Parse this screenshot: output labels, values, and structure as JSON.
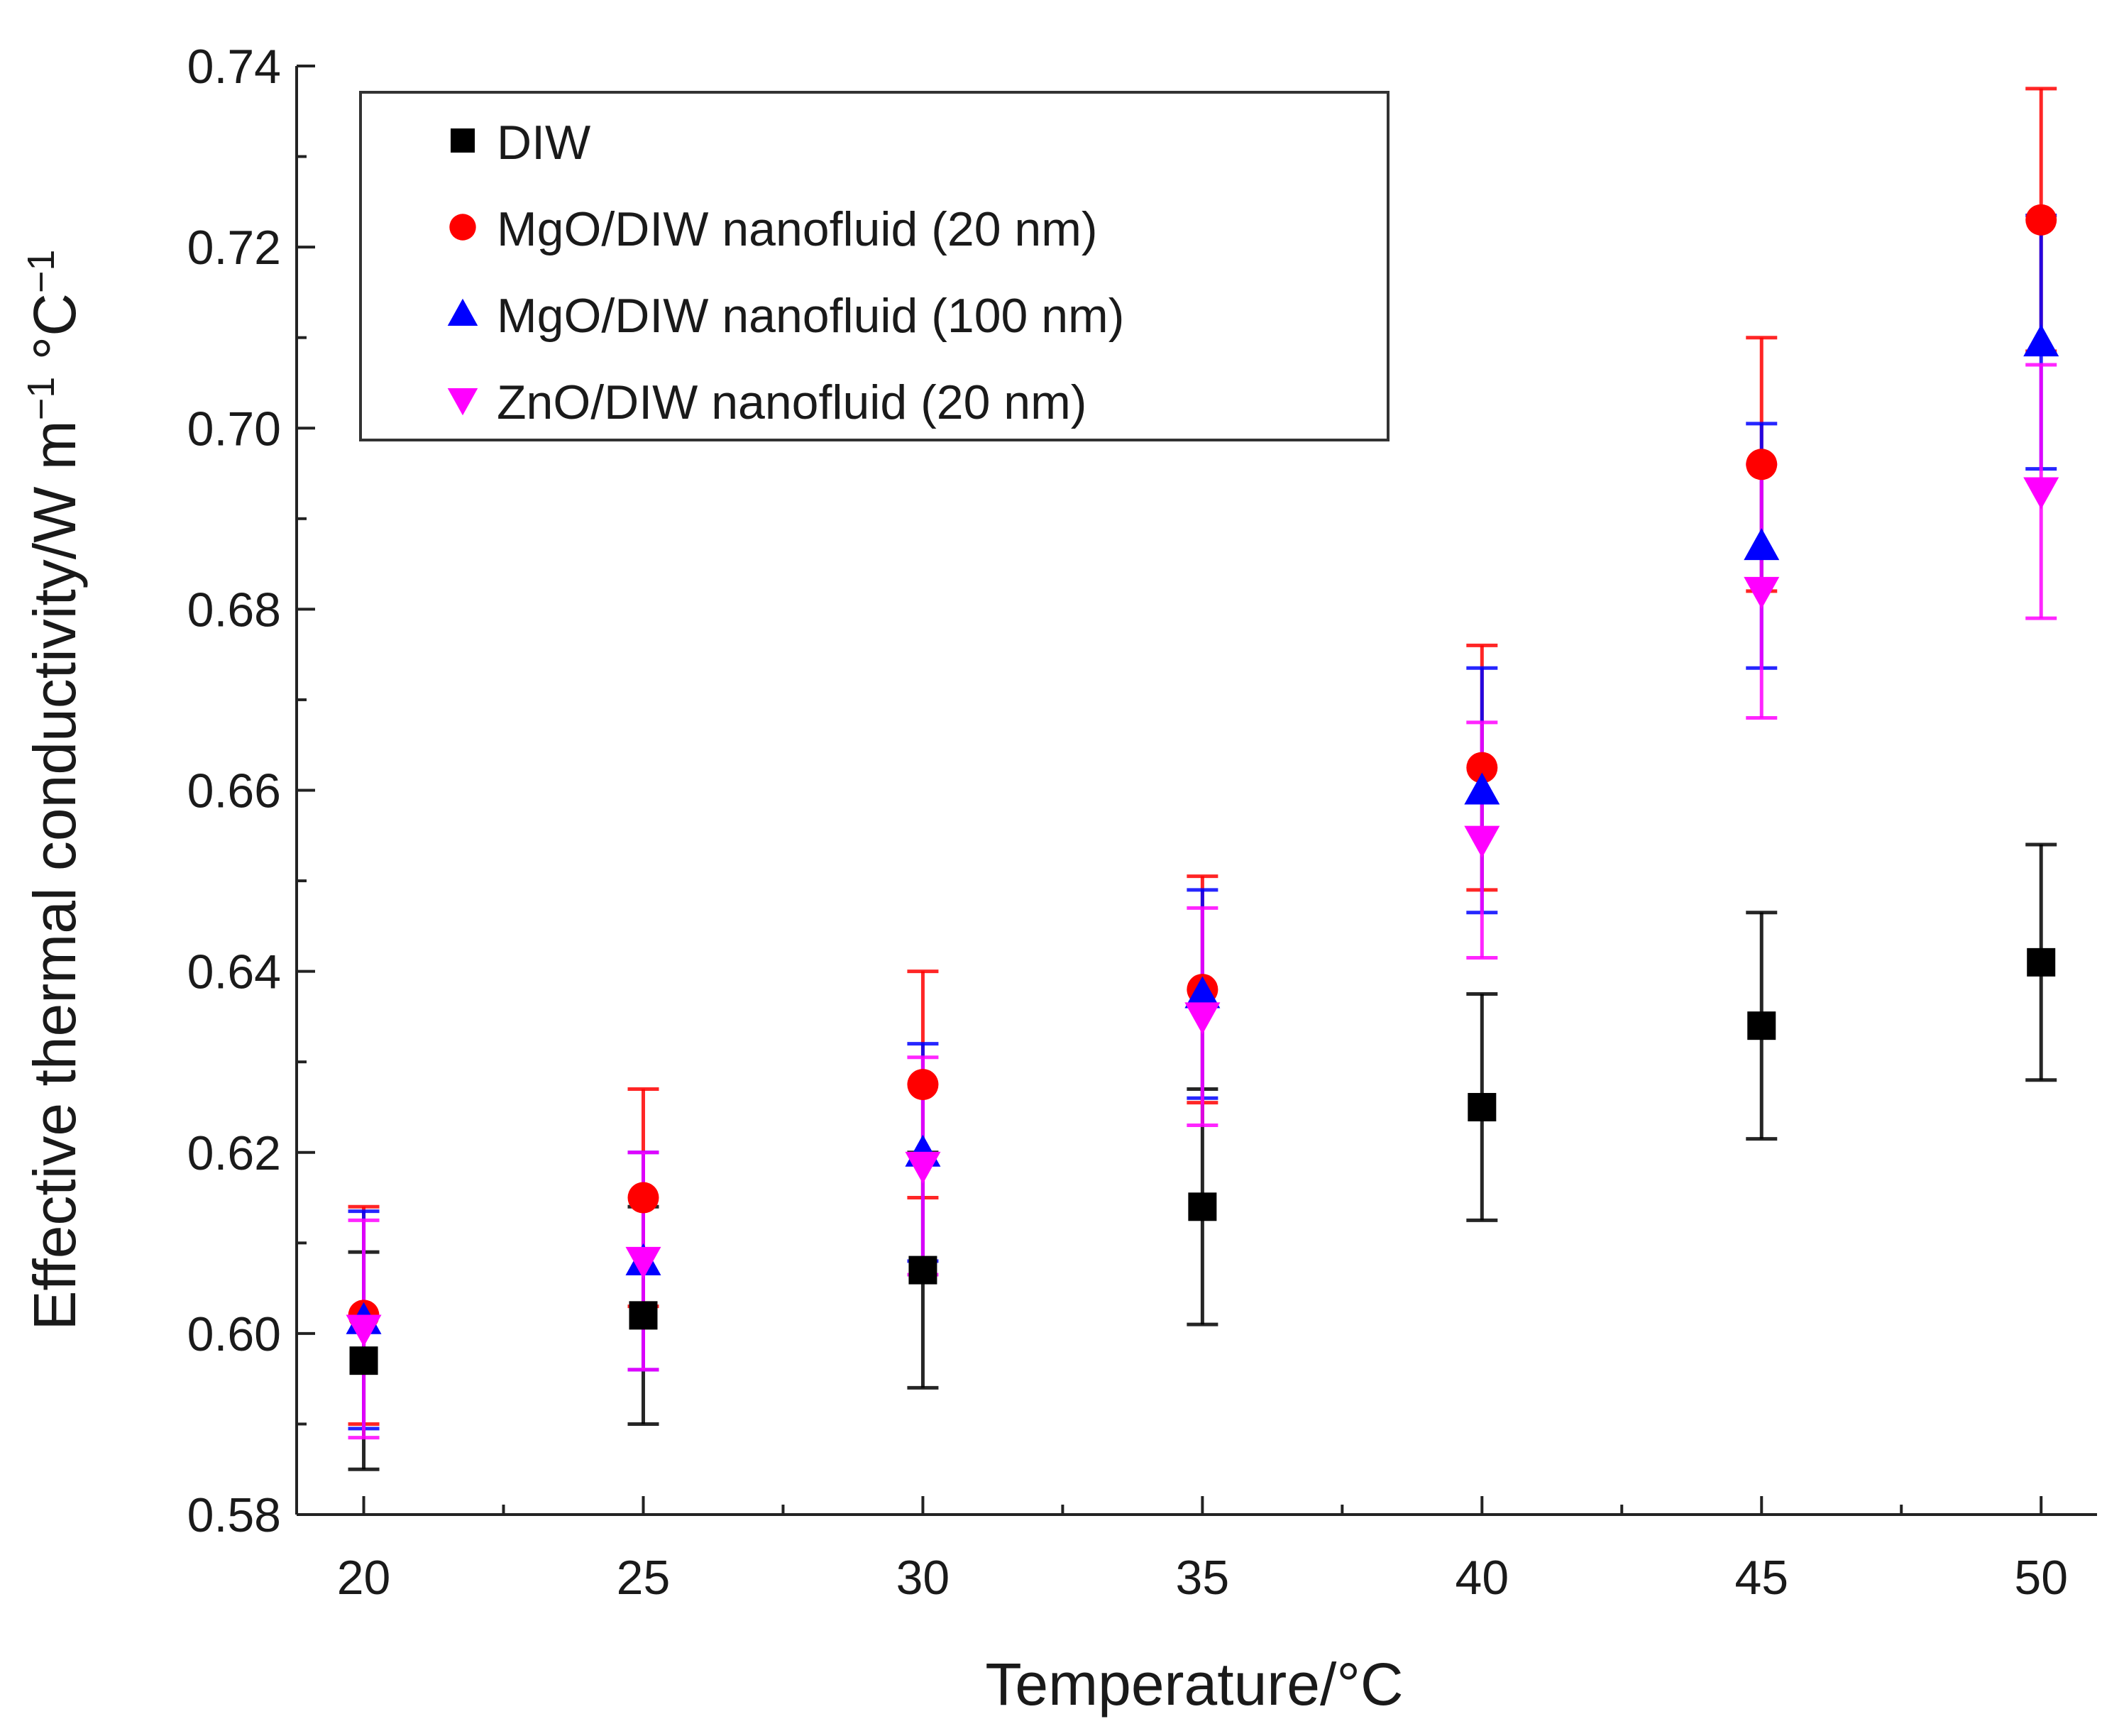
{
  "chart_data": {
    "type": "scatter",
    "title": "",
    "xlabel": "Temperature/°C",
    "ylabel_parts": [
      "Effective thermal conductivity/W m",
      "−1",
      " °C",
      "−1"
    ],
    "xlim": [
      18.8,
      51
    ],
    "ylim": [
      0.58,
      0.74
    ],
    "x": [
      20,
      25,
      30,
      35,
      40,
      45,
      50
    ],
    "x_ticks": [
      20,
      25,
      30,
      35,
      40,
      45,
      50
    ],
    "y_ticks": [
      0.58,
      0.6,
      0.62,
      0.64,
      0.66,
      0.68,
      0.7,
      0.72,
      0.74
    ],
    "x_tick_labels": [
      "20",
      "25",
      "30",
      "35",
      "40",
      "45",
      "50"
    ],
    "y_tick_labels": [
      "0.58",
      "0.60",
      "0.62",
      "0.64",
      "0.66",
      "0.68",
      "0.70",
      "0.72",
      "0.74"
    ],
    "legend_position": "top-left",
    "series": [
      {
        "name": "DIW",
        "marker": "square",
        "color": "#000000",
        "values": [
          0.597,
          0.602,
          0.607,
          0.614,
          0.625,
          0.634,
          0.641
        ],
        "errors": [
          0.012,
          0.012,
          0.013,
          0.013,
          0.0125,
          0.0125,
          0.013
        ]
      },
      {
        "name": "MgO/DIW nanofluid (20 nm)",
        "marker": "circle",
        "color": "#ff0000",
        "values": [
          0.602,
          0.615,
          0.6275,
          0.638,
          0.6625,
          0.696,
          0.723
        ],
        "errors": [
          0.012,
          0.012,
          0.0125,
          0.0125,
          0.0135,
          0.014,
          0.0145
        ]
      },
      {
        "name": "MgO/DIW nanofluid (100 nm)",
        "marker": "triangle-up",
        "color": "#0000ff",
        "values": [
          0.6015,
          0.608,
          0.62,
          0.6375,
          0.66,
          0.687,
          0.7095
        ],
        "errors": [
          0.012,
          0.012,
          0.012,
          0.0115,
          0.0135,
          0.0135,
          0.014
        ]
      },
      {
        "name": "ZnO/DIW nanofluid (20 nm)",
        "marker": "triangle-down",
        "color": "#ff00ff",
        "values": [
          0.6005,
          0.608,
          0.6185,
          0.635,
          0.6545,
          0.682,
          0.693
        ],
        "errors": [
          0.012,
          0.012,
          0.012,
          0.012,
          0.013,
          0.014,
          0.014
        ]
      }
    ]
  }
}
